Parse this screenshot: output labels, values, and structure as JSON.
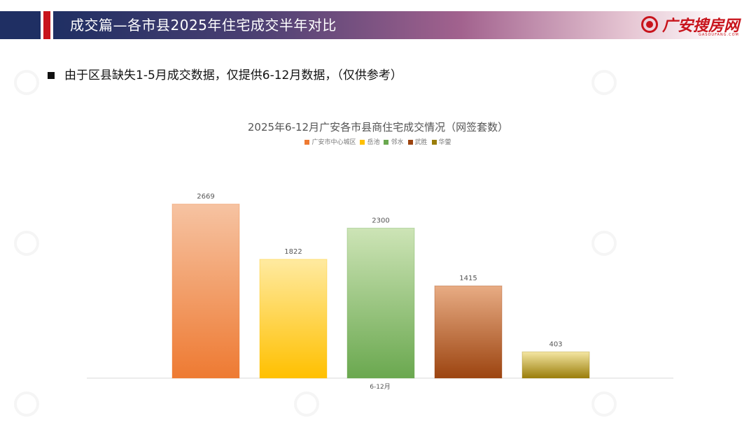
{
  "header": {
    "title": "成交篇—各市县2025年住宅成交半年对比",
    "logo_text": "广安搜房网",
    "logo_sub": "GASOUFANG.COM"
  },
  "bullet": {
    "text": "由于区县缺失1-5月成交数据，仅提供6-12月数据，（仅供参考）"
  },
  "chart_data": {
    "type": "bar",
    "title": "2025年6-12月广安各市县商住宅成交情况（网签套数）",
    "categories": [
      "6-12月"
    ],
    "series": [
      {
        "name": "广安市中心城区",
        "values": [
          2669
        ],
        "color_top": "#f6c3a2",
        "color_bottom": "#ee7a32"
      },
      {
        "name": "岳池",
        "values": [
          1822
        ],
        "color_top": "#ffeaa0",
        "color_bottom": "#ffc000"
      },
      {
        "name": "邻水",
        "values": [
          2300
        ],
        "color_top": "#cde4b6",
        "color_bottom": "#6aa84f"
      },
      {
        "name": "武胜",
        "values": [
          1415
        ],
        "color_top": "#e8ac84",
        "color_bottom": "#9c4410"
      },
      {
        "name": "华蓥",
        "values": [
          403
        ],
        "color_top": "#f4e6a2",
        "color_bottom": "#9a7d0a"
      }
    ],
    "legend_position": "top",
    "grid": false,
    "ylim": [
      0,
      3000
    ]
  }
}
